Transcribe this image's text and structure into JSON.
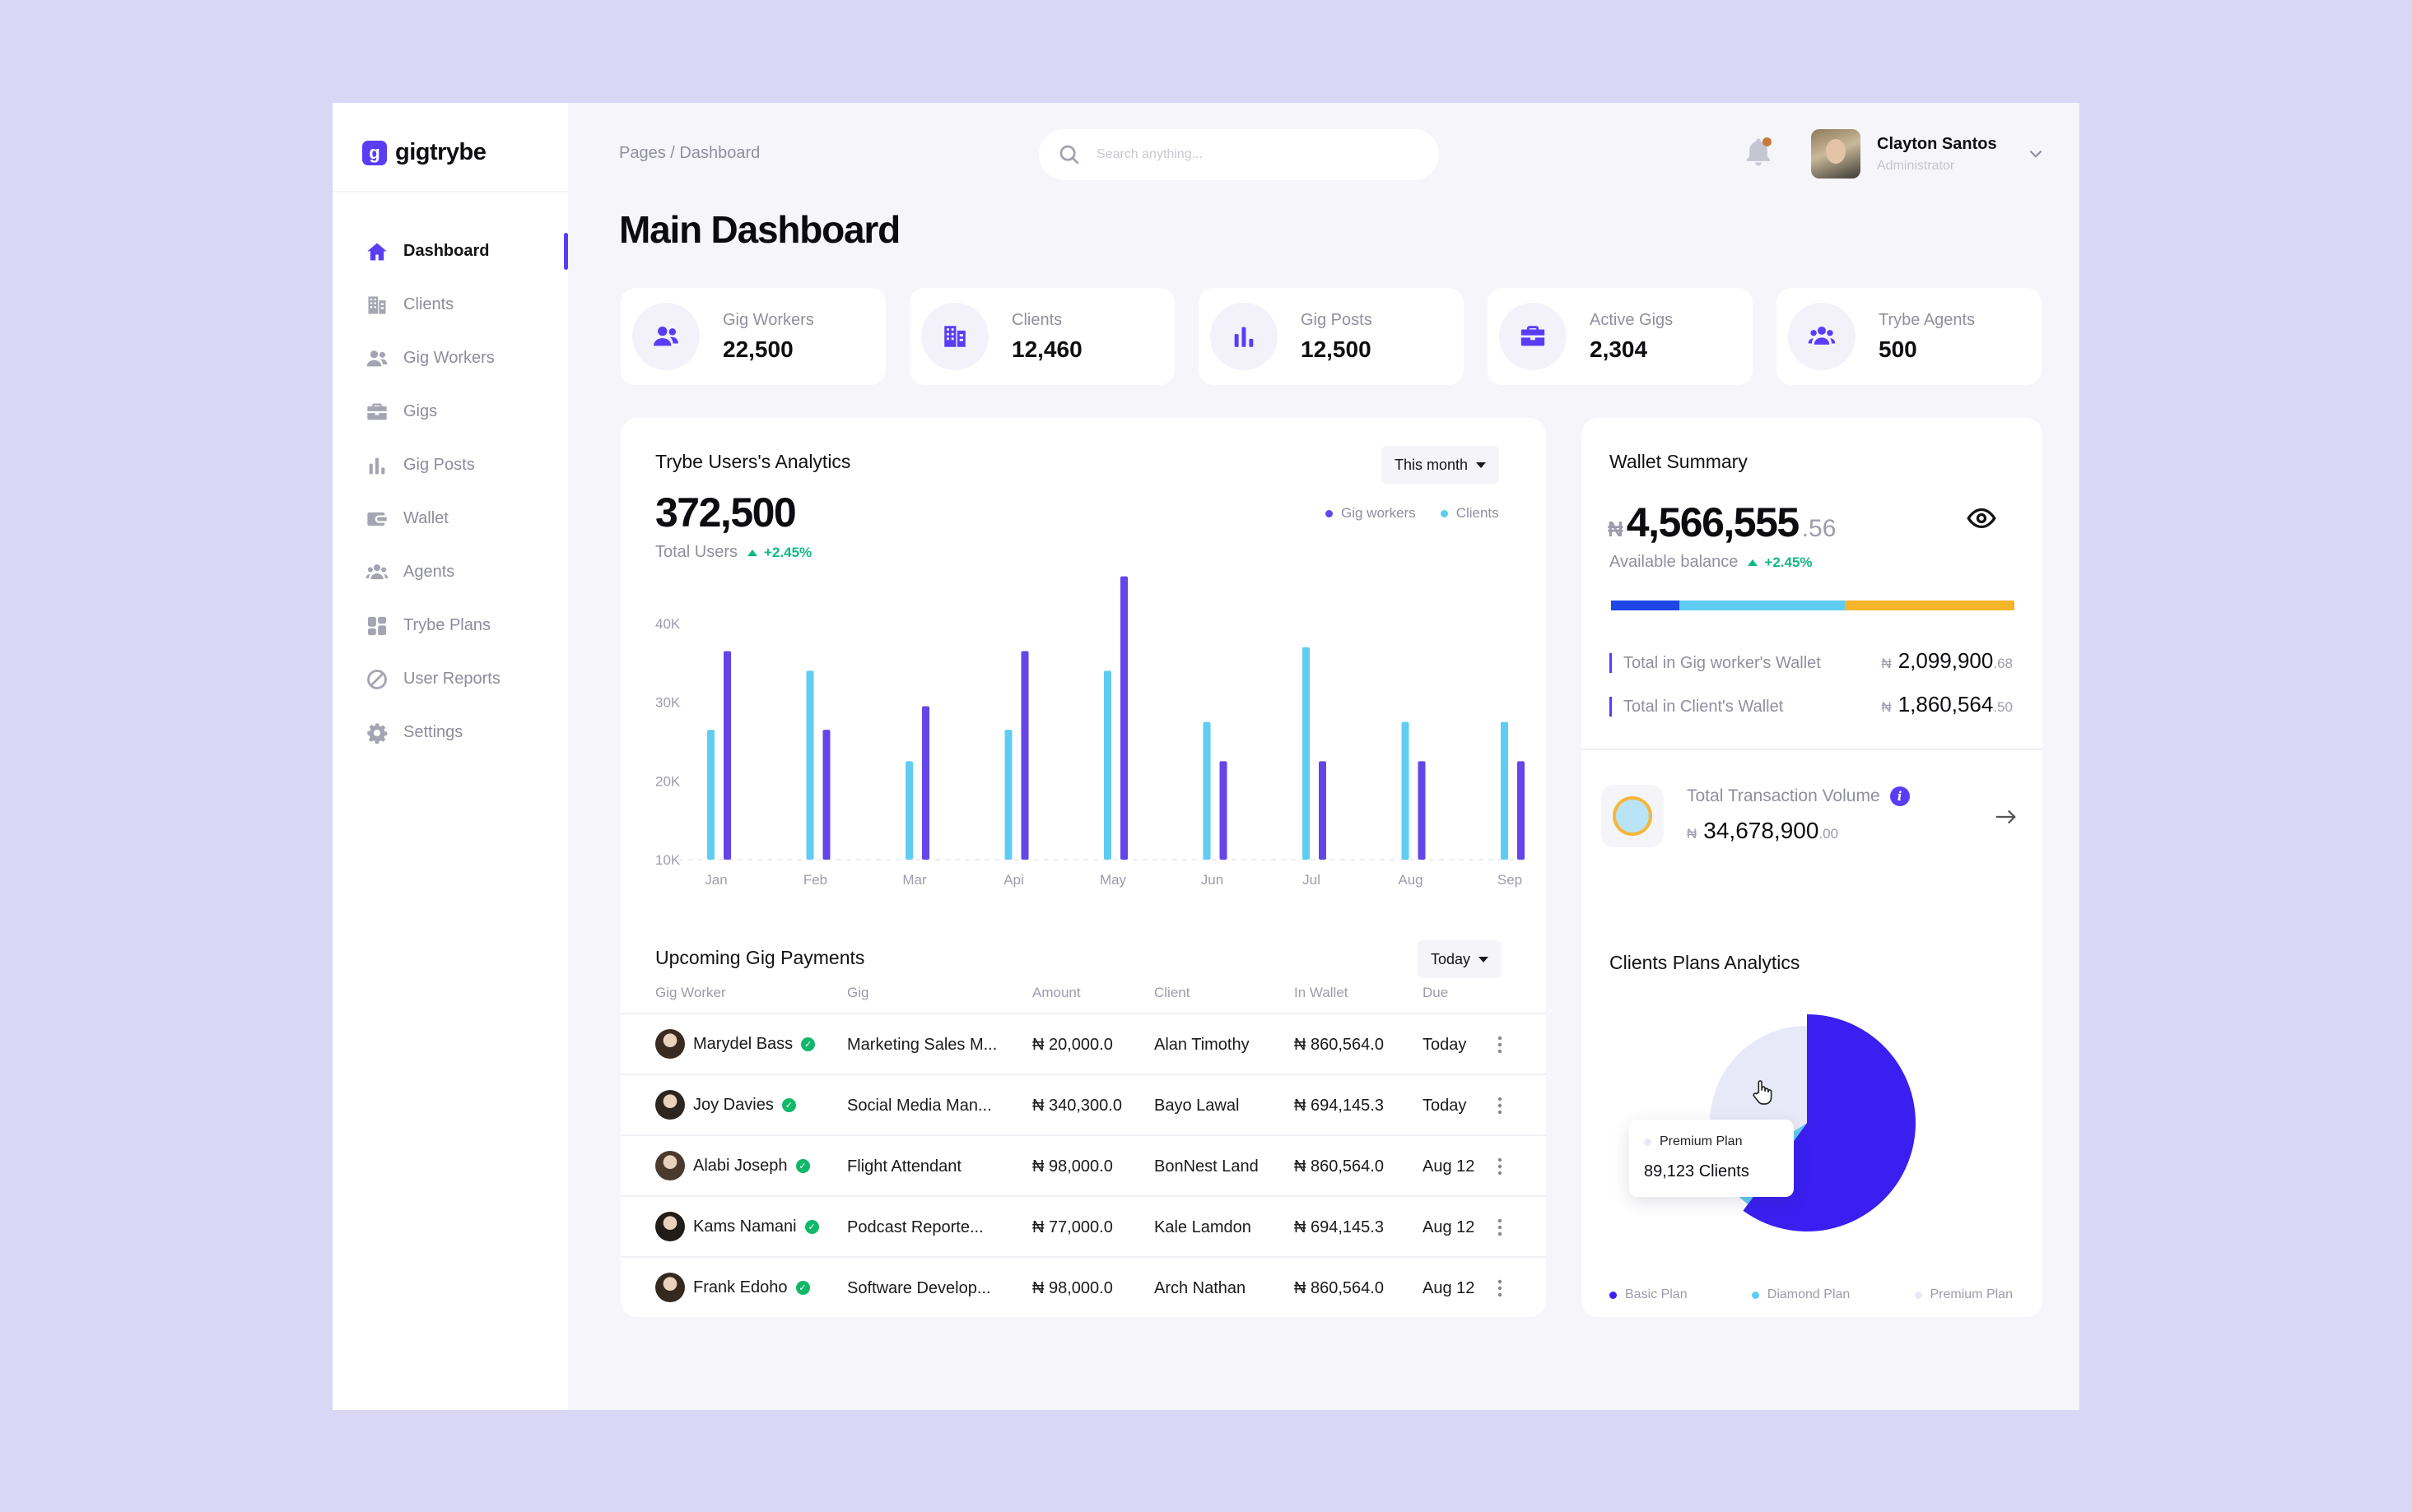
{
  "app": {
    "name": "gigtrybe",
    "logo_letter": "g",
    "accent": "#5b3cf5"
  },
  "sidebar": {
    "items": [
      {
        "label": "Dashboard",
        "icon": "home-icon"
      },
      {
        "label": "Clients",
        "icon": "building-icon"
      },
      {
        "label": "Gig Workers",
        "icon": "users-icon"
      },
      {
        "label": "Gigs",
        "icon": "briefcase-icon"
      },
      {
        "label": "Gig Posts",
        "icon": "bar-chart-icon"
      },
      {
        "label": "Wallet",
        "icon": "wallet-icon"
      },
      {
        "label": "Agents",
        "icon": "group-icon"
      },
      {
        "label": "Trybe Plans",
        "icon": "grid-icon"
      },
      {
        "label": "User Reports",
        "icon": "ban-icon"
      },
      {
        "label": "Settings",
        "icon": "gear-icon"
      }
    ]
  },
  "header": {
    "breadcrumb": "Pages / Dashboard",
    "search_placeholder": "Search anything...",
    "user_name": "Clayton Santos",
    "user_role": "Administrator"
  },
  "page_title": "Main Dashboard",
  "stats": [
    {
      "label": "Gig Workers",
      "value": "22,500",
      "icon": "users-icon"
    },
    {
      "label": "Clients",
      "value": "12,460",
      "icon": "building-icon"
    },
    {
      "label": "Gig Posts",
      "value": "12,500",
      "icon": "bar-chart-icon"
    },
    {
      "label": "Active Gigs",
      "value": "2,304",
      "icon": "briefcase-icon"
    },
    {
      "label": "Trybe Agents",
      "value": "500",
      "icon": "group-icon"
    }
  ],
  "analytics": {
    "title": "Trybe Users's Analytics",
    "filter": "This month",
    "total": "372,500",
    "total_label": "Total Users",
    "growth": "+2.45%",
    "legend_workers": "Gig workers",
    "legend_clients": "Clients"
  },
  "chart_data": {
    "type": "bar",
    "title": "Trybe Users's Analytics",
    "categories": [
      "Jan",
      "Feb",
      "Mar",
      "Api",
      "May",
      "Jun",
      "Jul",
      "Aug",
      "Sep"
    ],
    "series": [
      {
        "name": "Clients",
        "color": "#5fcdf2",
        "values": [
          26500,
          34000,
          22500,
          26500,
          34000,
          27500,
          37000,
          27500,
          27500
        ]
      },
      {
        "name": "Gig workers",
        "color": "#6445e8",
        "values": [
          36500,
          26500,
          29500,
          36500,
          46000,
          22500,
          22500,
          22500,
          22500
        ]
      }
    ],
    "yticks": [
      "40K",
      "30K",
      "20K",
      "10K"
    ],
    "ylim": [
      10000,
      46000
    ]
  },
  "wallet": {
    "title": "Wallet Summary",
    "currency": "₦",
    "balance_main": "4,566,555",
    "balance_dec": ".56",
    "balance_label": "Available balance",
    "growth": "+2.45%",
    "bar_segments": [
      {
        "color": "#2046e8",
        "fraction": 0.17
      },
      {
        "color": "#5fcdf2",
        "fraction": 0.41
      },
      {
        "color": "#f5b52b",
        "fraction": 0.42
      }
    ],
    "rows": [
      {
        "label": "Total in Gig worker's Wallet",
        "main": "2,099,900",
        "dec": ".68"
      },
      {
        "label": "Total in Client's Wallet",
        "main": "1,860,564",
        "dec": ".50"
      }
    ],
    "tv_label": "Total Transaction Volume",
    "tv_main": "34,678,900",
    "tv_dec": ".00"
  },
  "payments": {
    "title": "Upcoming Gig Payments",
    "filter": "Today",
    "columns": [
      "Gig Worker",
      "Gig",
      "Amount",
      "Client",
      "In Wallet",
      "Due"
    ],
    "rows": [
      {
        "worker": "Marydel Bass",
        "gig": "Marketing Sales M...",
        "amount": "₦ 20,000.0",
        "client": "Alan Timothy",
        "wallet": "₦ 860,564.0",
        "due": "Today"
      },
      {
        "worker": "Joy Davies",
        "gig": "Social Media Man...",
        "amount": "₦ 340,300.0",
        "client": "Bayo Lawal",
        "wallet": "₦ 694,145.3",
        "due": "Today"
      },
      {
        "worker": "Alabi Joseph",
        "gig": "Flight Attendant",
        "amount": "₦ 98,000.0",
        "client": "BonNest Land",
        "wallet": "₦ 860,564.0",
        "due": "Aug 12"
      },
      {
        "worker": "Kams Namani",
        "gig": "Podcast Reporte...",
        "amount": "₦ 77,000.0",
        "client": "Kale Lamdon",
        "wallet": "₦ 694,145.3",
        "due": "Aug 12"
      },
      {
        "worker": "Frank Edoho",
        "gig": "Software Develop...",
        "amount": "₦ 98,000.0",
        "client": "Arch Nathan",
        "wallet": "₦ 860,564.0",
        "due": "Aug 12"
      }
    ]
  },
  "plans": {
    "title": "Clients Plans Analytics",
    "tooltip_label": "Premium Plan",
    "tooltip_value": "89,123 Clients",
    "slices": [
      {
        "name": "Basic Plan",
        "value": 0.6,
        "color": "#3a1ff0"
      },
      {
        "name": "Diamond Plan",
        "value": 0.06,
        "color": "#5fcdf2"
      },
      {
        "name": "Premium Plan",
        "value": 0.34,
        "color": "#e8e9f8"
      }
    ]
  }
}
